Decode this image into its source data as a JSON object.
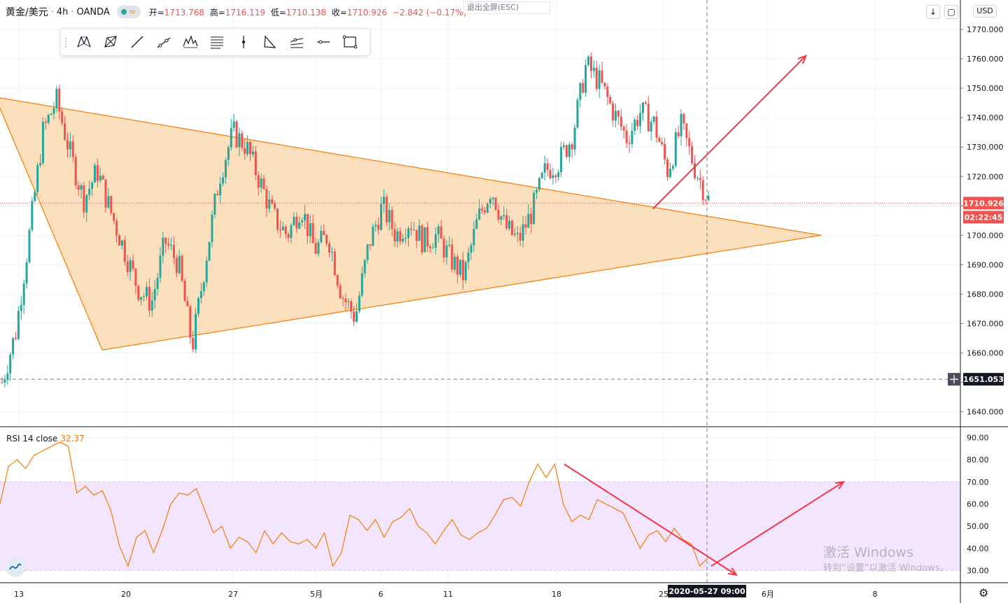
{
  "header": {
    "symbol": "黄金/美元",
    "interval": "4h",
    "source": "OANDA",
    "ohlc": [
      {
        "label": "开",
        "value": "1713.768"
      },
      {
        "label": "高",
        "value": "1716.119"
      },
      {
        "label": "低",
        "value": "1710.138"
      },
      {
        "label": "收",
        "value": "1710.926"
      }
    ],
    "change": "−2.842 (−0.17%)",
    "exit_fullscreen": "退出全屏(ESC)",
    "currency": "USD",
    "icons": [
      "market-status-dot-icon",
      "wave-icon",
      "scroll-down-icon",
      "fullscreen-icon"
    ]
  },
  "toolbar": {
    "tools": [
      "xabcd-pattern-icon",
      "cypher-pattern-icon",
      "trend-line-icon",
      "ray-icon",
      "elliott-wave-icon",
      "parallel-channel-icon",
      "vertical-line-icon",
      "triangle-pattern-icon",
      "pitchfork-icon",
      "horizontal-line-icon",
      "rectangle-icon"
    ]
  },
  "rsi": {
    "label": "RSI 14 close",
    "value": "32.37"
  },
  "price_axis": {
    "current_price": "1710.926",
    "countdown": "02:22:45",
    "crosshair_price": "1651.053"
  },
  "time_axis": {
    "crosshair_time": "2020-05-27   09:00"
  },
  "watermark": {
    "line1": "激活 Windows",
    "line2": "转到“设置”以激活 Windows。"
  },
  "colors": {
    "up": "#26a69a",
    "down": "#ef5350",
    "triangle_stroke": "#f57c00",
    "triangle_fill": "#fcd9b0",
    "rsi_line": "#f57c00",
    "rsi_band": "#f3e5fd",
    "annotation_arrow": "#f23645"
  },
  "chart_data": [
    {
      "type": "candlestick",
      "title": "黄金/美元 · 4h · OANDA",
      "ylim": [
        1634,
        1775
      ],
      "y_ticks": [
        "1770.000",
        "1760.000",
        "1750.000",
        "1740.000",
        "1730.000",
        "1720.000",
        "1710.000",
        "1700.000",
        "1690.000",
        "1680.000",
        "1670.000",
        "1660.000",
        "1650.000",
        "1640.000"
      ],
      "x_tick_labels": [
        "13",
        "20",
        "27",
        "5月",
        "6",
        "11",
        "18",
        "25",
        "6月",
        "8"
      ],
      "price_path": [
        1650,
        1667,
        1700,
        1735,
        1746,
        1728,
        1712,
        1722,
        1708,
        1695,
        1682,
        1677,
        1698,
        1690,
        1662,
        1692,
        1720,
        1735,
        1730,
        1718,
        1706,
        1700,
        1710,
        1695,
        1700,
        1680,
        1672,
        1697,
        1710,
        1700,
        1705,
        1698,
        1700,
        1692,
        1686,
        1705,
        1716,
        1703,
        1698,
        1708,
        1722,
        1725,
        1734,
        1758,
        1752,
        1742,
        1733,
        1742,
        1738,
        1722,
        1737,
        1723,
        1712
      ],
      "triangle": {
        "vertices": [
          {
            "date": "2020-04-14",
            "price": 1747
          },
          {
            "date": "2020-04-21",
            "price": 1661
          },
          {
            "date": "2020-06-07",
            "price": 1700
          }
        ]
      },
      "projection_arrow": {
        "from": {
          "date": "2020-05-27",
          "price": 1709
        },
        "to": {
          "date": "2020-06-06",
          "price": 1761
        }
      }
    },
    {
      "type": "line",
      "title": "RSI 14 close",
      "ylim": [
        25,
        92
      ],
      "y_ticks": [
        "90.00",
        "80.00",
        "70.00",
        "60.00",
        "50.00",
        "40.00",
        "30.00"
      ],
      "band": [
        30,
        70
      ],
      "series": [
        {
          "name": "RSI 14 close",
          "values": [
            60,
            77,
            80,
            76,
            82,
            84,
            86,
            88,
            86,
            65,
            68,
            64,
            66,
            57,
            41,
            32,
            45,
            48,
            38,
            48,
            60,
            65,
            64,
            67,
            57,
            47,
            50,
            40,
            45,
            43,
            38,
            48,
            42,
            47,
            43,
            42,
            44,
            40,
            47,
            32,
            38,
            55,
            53,
            48,
            53,
            45,
            52,
            54,
            58,
            50,
            47,
            42,
            48,
            53,
            46,
            44,
            47,
            49,
            55,
            62,
            63,
            59,
            70,
            78,
            72,
            78,
            60,
            52,
            55,
            53,
            62,
            60,
            58,
            56,
            48,
            40,
            46,
            48,
            43,
            49,
            44,
            42,
            32,
            36
          ]
        }
      ],
      "trend_arrow": {
        "from": 78,
        "to": 28
      },
      "projection_arrow": {
        "from": 32,
        "to": 70
      }
    }
  ]
}
